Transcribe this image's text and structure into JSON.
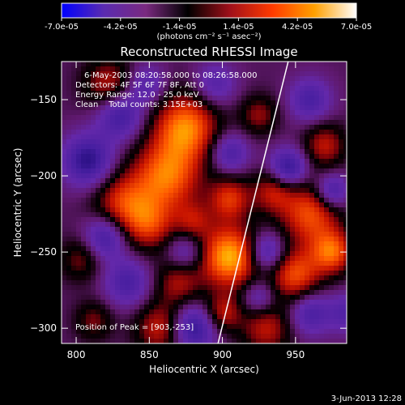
{
  "chart_data": {
    "type": "heatmap",
    "title": "Reconstructed RHESSI Image",
    "colorbar": {
      "ticks": [
        "-7.0e-05",
        "-4.2e-05",
        "-1.4e-05",
        "1.4e-05",
        "4.2e-05",
        "7.0e-05"
      ],
      "unit_label": "(photons cm⁻² s⁻¹ asec⁻²)",
      "range": [
        -7e-05,
        7e-05
      ],
      "colors": [
        "#0000ff",
        "#5a2bb0",
        "#7a2a80",
        "#000000",
        "#a0101a",
        "#ff3a00",
        "#ffa000",
        "#ffffff"
      ]
    },
    "xlabel": "Heliocentric X (arcsec)",
    "ylabel": "Heliocentric Y (arcsec)",
    "xticks": [
      800,
      850,
      900,
      950
    ],
    "yticks": [
      -150,
      -200,
      -250,
      -300
    ],
    "xlim": [
      790,
      985
    ],
    "ylim": [
      -310,
      -125
    ],
    "annotations": {
      "time": "6-May-2003 08:20:58.000 to 08:26:58.000",
      "detectors": "Detectors: 4F 5F 6F 7F 8F, Att 0",
      "energy": "Energy Range: 12.0 - 25.0 keV",
      "clean": "Clean    Total counts: 3.15E+03",
      "peak": "Position of Peak = [903,-253]"
    },
    "limb_line": {
      "x": [
        897,
        945
      ],
      "y": [
        -310,
        -125
      ]
    },
    "peak": {
      "x": 903,
      "y": -253
    },
    "blobs": [
      {
        "x": 905,
        "y": -253,
        "v": 1.0,
        "s": 14
      },
      {
        "x": 862,
        "y": -200,
        "v": 0.8,
        "s": 16
      },
      {
        "x": 875,
        "y": -168,
        "v": 0.85,
        "s": 15
      },
      {
        "x": 832,
        "y": -218,
        "v": 0.6,
        "s": 14
      },
      {
        "x": 850,
        "y": -232,
        "v": 0.55,
        "s": 12
      },
      {
        "x": 822,
        "y": -140,
        "v": 0.5,
        "s": 12
      },
      {
        "x": 960,
        "y": -225,
        "v": 0.7,
        "s": 14
      },
      {
        "x": 935,
        "y": -210,
        "v": 0.5,
        "s": 10
      },
      {
        "x": 950,
        "y": -265,
        "v": 0.7,
        "s": 12
      },
      {
        "x": 975,
        "y": -250,
        "v": 0.75,
        "s": 10
      },
      {
        "x": 930,
        "y": -300,
        "v": 0.5,
        "s": 12
      },
      {
        "x": 870,
        "y": -270,
        "v": 0.45,
        "s": 11
      },
      {
        "x": 858,
        "y": -300,
        "v": 0.55,
        "s": 12
      },
      {
        "x": 900,
        "y": -290,
        "v": 0.5,
        "s": 9
      },
      {
        "x": 925,
        "y": -160,
        "v": 0.4,
        "s": 9
      },
      {
        "x": 812,
        "y": -295,
        "v": 0.35,
        "s": 9
      },
      {
        "x": 803,
        "y": -255,
        "v": 0.35,
        "s": 10
      },
      {
        "x": 970,
        "y": -180,
        "v": 0.5,
        "s": 10
      },
      {
        "x": 880,
        "y": -230,
        "v": 0.4,
        "s": 9
      },
      {
        "x": 905,
        "y": -215,
        "v": 0.6,
        "s": 10
      },
      {
        "x": 830,
        "y": -160,
        "v": -0.6,
        "s": 11
      },
      {
        "x": 808,
        "y": -190,
        "v": -0.7,
        "s": 12
      },
      {
        "x": 820,
        "y": -240,
        "v": -0.6,
        "s": 10
      },
      {
        "x": 835,
        "y": -270,
        "v": -0.5,
        "s": 11
      },
      {
        "x": 880,
        "y": -300,
        "v": -0.7,
        "s": 11
      },
      {
        "x": 875,
        "y": -250,
        "v": -0.4,
        "s": 9
      },
      {
        "x": 930,
        "y": -250,
        "v": -0.6,
        "s": 9
      },
      {
        "x": 945,
        "y": -195,
        "v": -0.7,
        "s": 9
      },
      {
        "x": 960,
        "y": -150,
        "v": -0.5,
        "s": 10
      },
      {
        "x": 905,
        "y": -185,
        "v": -0.5,
        "s": 9
      },
      {
        "x": 960,
        "y": -290,
        "v": -0.5,
        "s": 10
      },
      {
        "x": 975,
        "y": -210,
        "v": -0.6,
        "s": 8
      },
      {
        "x": 848,
        "y": -140,
        "v": -0.4,
        "s": 9
      },
      {
        "x": 895,
        "y": -140,
        "v": -0.4,
        "s": 10
      },
      {
        "x": 925,
        "y": -280,
        "v": -0.4,
        "s": 8
      },
      {
        "x": 985,
        "y": -290,
        "v": -0.4,
        "s": 9
      }
    ]
  },
  "footer": {
    "timestamp": "3-Jun-2013 12:28"
  }
}
